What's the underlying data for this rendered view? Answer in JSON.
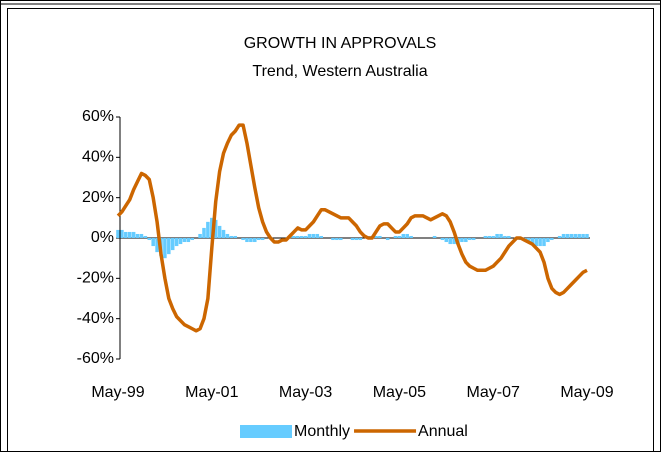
{
  "chart_data": {
    "type": "combo",
    "title": "GROWTH IN APPROVALS",
    "subtitle": "Trend, Western Australia",
    "categories": [
      "May-99",
      null,
      null,
      null,
      null,
      null,
      null,
      null,
      null,
      null,
      null,
      null,
      null,
      null,
      null,
      null,
      null,
      null,
      null,
      null,
      null,
      null,
      null,
      null,
      "May-01",
      null,
      null,
      null,
      null,
      null,
      null,
      null,
      null,
      null,
      null,
      null,
      null,
      null,
      null,
      null,
      null,
      null,
      null,
      null,
      null,
      null,
      null,
      null,
      "May-03",
      null,
      null,
      null,
      null,
      null,
      null,
      null,
      null,
      null,
      null,
      null,
      null,
      null,
      null,
      null,
      null,
      null,
      null,
      null,
      null,
      null,
      null,
      null,
      "May-05",
      null,
      null,
      null,
      null,
      null,
      null,
      null,
      null,
      null,
      null,
      null,
      null,
      null,
      null,
      null,
      null,
      null,
      null,
      null,
      null,
      null,
      null,
      null,
      "May-07",
      null,
      null,
      null,
      null,
      null,
      null,
      null,
      null,
      null,
      null,
      null,
      null,
      null,
      null,
      null,
      null,
      null,
      null,
      null,
      null,
      null,
      null,
      null,
      "May-09"
    ],
    "series": [
      {
        "name": "Monthly",
        "type": "bar",
        "color": "#66ccff",
        "values": [
          4,
          4,
          3,
          3,
          3,
          2,
          2,
          1,
          -1,
          -4,
          -7,
          -9,
          -10,
          -8,
          -6,
          -4,
          -3,
          -2,
          -2,
          -1,
          0,
          2,
          5,
          8,
          10,
          9,
          6,
          4,
          2,
          1,
          1,
          0,
          -1,
          -2,
          -2,
          -2,
          -1,
          -1,
          0,
          0,
          0,
          0,
          0,
          0,
          1,
          1,
          1,
          1,
          1,
          2,
          2,
          2,
          1,
          0,
          0,
          -1,
          -1,
          -1,
          0,
          0,
          -1,
          -1,
          -1,
          0,
          1,
          1,
          1,
          1,
          0,
          -1,
          0,
          1,
          1,
          2,
          2,
          1,
          0,
          0,
          0,
          0,
          0,
          1,
          0,
          -1,
          -2,
          -3,
          -3,
          -3,
          -2,
          -2,
          -1,
          -1,
          0,
          0,
          1,
          1,
          1,
          2,
          2,
          1,
          1,
          0,
          0,
          -1,
          -1,
          -2,
          -3,
          -4,
          -4,
          -4,
          -2,
          -1,
          0,
          1,
          2,
          2,
          2,
          2,
          2,
          2,
          2
        ]
      },
      {
        "name": "Annual",
        "type": "line",
        "color": "#cc6600",
        "values": [
          11,
          13,
          16,
          19,
          24,
          28,
          32,
          31,
          29,
          20,
          8,
          -8,
          -20,
          -30,
          -35,
          -39,
          -41,
          -43,
          -44,
          -45,
          -46,
          -45,
          -40,
          -30,
          -5,
          18,
          33,
          42,
          47,
          51,
          53,
          56,
          56,
          47,
          36,
          25,
          15,
          8,
          3,
          0,
          -2,
          -2,
          -1,
          -1,
          1,
          3,
          5,
          4,
          4,
          6,
          8,
          11,
          14,
          14,
          13,
          12,
          11,
          10,
          10,
          10,
          8,
          6,
          3,
          1,
          0,
          0,
          3,
          6,
          7,
          7,
          5,
          3,
          3,
          5,
          7,
          10,
          11,
          11,
          11,
          10,
          9,
          10,
          11,
          12,
          11,
          8,
          3,
          -3,
          -8,
          -12,
          -14,
          -15,
          -16,
          -16,
          -16,
          -15,
          -14,
          -12,
          -10,
          -7,
          -4,
          -2,
          0,
          0,
          -1,
          -2,
          -3,
          -5,
          -7,
          -12,
          -20,
          -25,
          -27,
          -28,
          -27,
          -25,
          -23,
          -21,
          -19,
          -17,
          -16
        ]
      }
    ],
    "ylim": [
      -60,
      60
    ],
    "yticks": [
      {
        "value": -60,
        "label": "-60%"
      },
      {
        "value": -40,
        "label": "-40%"
      },
      {
        "value": -20,
        "label": "-20%"
      },
      {
        "value": 0,
        "label": "0%"
      },
      {
        "value": 20,
        "label": "20%"
      },
      {
        "value": 40,
        "label": "40%"
      },
      {
        "value": 60,
        "label": "60%"
      }
    ],
    "legend": "bottom"
  }
}
